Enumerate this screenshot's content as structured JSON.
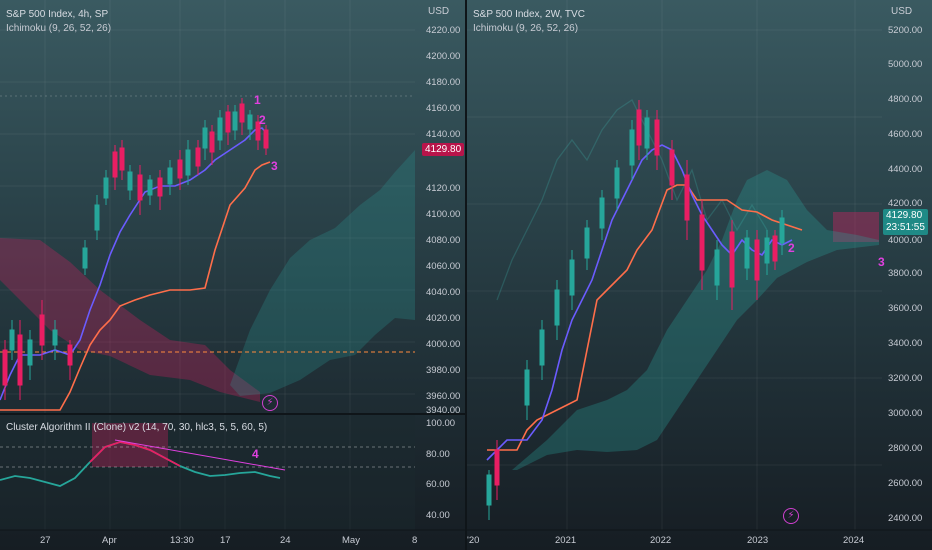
{
  "left": {
    "title": "S&P 500 Index, 4h, SP",
    "indicator": "Ichimoku (9, 26, 52, 26)",
    "currency": "USD",
    "price_label": "4129.80",
    "y_ticks": [
      "4220.00",
      "4200.00",
      "4180.00",
      "4160.00",
      "4140.00",
      "4120.00",
      "4100.00",
      "4080.00",
      "4060.00",
      "4040.00",
      "4020.00",
      "4000.00",
      "3980.00",
      "3960.00",
      "3940.00"
    ],
    "x_ticks": [
      "27",
      "Apr",
      "13:30",
      "17",
      "24",
      "May",
      "8"
    ],
    "annotations": [
      "1",
      "2",
      "3"
    ],
    "oscillator": {
      "title": "Cluster Algorithm II (Clone) v2 (14, 70, 30, hlc3, 5, 5, 60, 5)",
      "y_ticks": [
        "100.00",
        "80.00",
        "60.00",
        "40.00"
      ],
      "annotation": "4"
    }
  },
  "right": {
    "title": "S&P 500 Index, 2W, TVC",
    "indicator": "Ichimoku (9, 26, 52, 26)",
    "currency": "USD",
    "price_label": "4129.80",
    "countdown": "23:51:55",
    "y_ticks": [
      "5200.00",
      "5000.00",
      "4800.00",
      "4600.00",
      "4400.00",
      "4200.00",
      "4000.00",
      "3800.00",
      "3600.00",
      "3400.00",
      "3200.00",
      "3000.00",
      "2800.00",
      "2600.00",
      "2400.00"
    ],
    "x_ticks": [
      "'20",
      "2021",
      "2022",
      "2023",
      "2024"
    ],
    "annotations": [
      "2",
      "3"
    ]
  },
  "colors": {
    "up": "#26a69a",
    "down": "#e91e63",
    "tenkan": "#6b5cff",
    "kijun": "#ff6e4a",
    "annot": "#e040e0",
    "price_tag_left": "#b8144a",
    "price_tag_right": "#1f8a86"
  }
}
